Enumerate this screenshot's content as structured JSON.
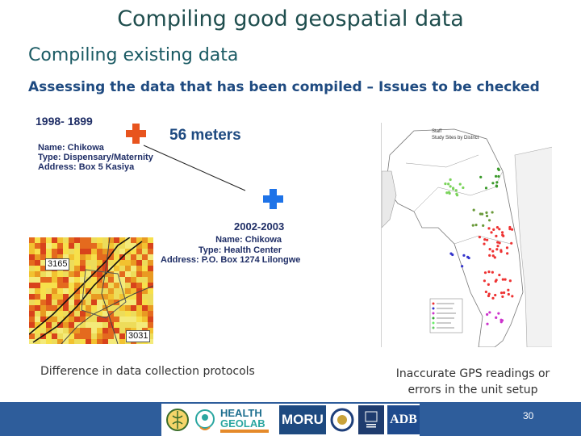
{
  "slide": {
    "title": "Compiling good geospatial data",
    "subtitle": "Compiling existing data",
    "issues_heading": "Assessing the data that has been compiled – Issues to be checked",
    "page_number": "30"
  },
  "record_1998": {
    "period": "1998- 1899",
    "name": "Name: Chikowa",
    "type": "Type: Dispensary/Maternity",
    "address": "Address: Box 5 Kasiya",
    "marker_color": "#e8541e",
    "marker_icon": "plus-icon"
  },
  "record_2002": {
    "period": "2002-2003",
    "name": "Name: Chikowa",
    "type": "Type: Health Center",
    "address": "Address: P.O. Box 1274 Lilongwe",
    "marker_color": "#1e73e8",
    "marker_icon": "plus-icon"
  },
  "distance_label": "56 meters",
  "raster_map": {
    "labels": [
      "3165",
      "3031"
    ]
  },
  "district_map": {
    "title_line1": "Staff",
    "title_line2": "Study Sites by District"
  },
  "captions": {
    "left": "Difference in data collection protocols",
    "right_line1": "Inaccurate GPS readings or",
    "right_line2": "errors in the unit setup"
  },
  "footer": {
    "logos": [
      "seal-logo",
      "health-geolab-logo",
      "moru-logo",
      "university-seal-logo",
      "oxford-logo",
      "adb-logo"
    ],
    "health_geolab_line1": "HEALTH",
    "health_geolab_line2": "GEOLAB",
    "moru": "MORU",
    "adb": "ADB",
    "background_color": "#2e5d9b"
  }
}
